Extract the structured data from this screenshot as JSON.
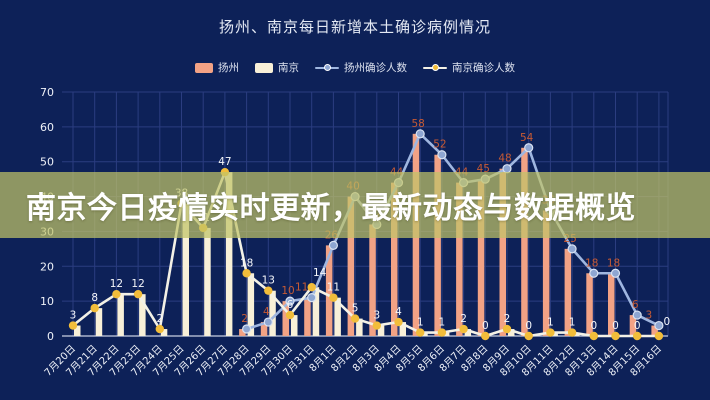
{
  "title": "扬州、南京每日新增本土确诊病例情况",
  "banner": {
    "text": "南京今日疫情实时更新，最新动态与数据概览"
  },
  "legend": [
    {
      "label": "扬州",
      "type": "bar",
      "color": "#f2a285"
    },
    {
      "label": "南京",
      "type": "bar",
      "color": "#f8f0d8"
    },
    {
      "label": "扬州确诊人数",
      "type": "line",
      "color": "#9fb6e0",
      "dot": "#8ea6d2"
    },
    {
      "label": "南京确诊人数",
      "type": "line",
      "color": "#f3f1e6",
      "dot": "#f2bd3a"
    }
  ],
  "colors": {
    "background": "#0d2158",
    "grid": "#2b3d80",
    "axis": "#c9d0e2",
    "tick_text": "#eef1f8",
    "yangzhou_bar": "#f2a285",
    "nanjing_bar": "#f8f0d8",
    "yangzhou_line": "#9fb6e0",
    "yangzhou_dot": "#8ea6d2",
    "nanjing_line": "#f3f1e6",
    "nanjing_dot": "#f2bd3a",
    "yangzhou_label": "#c65a34",
    "nanjing_label": "#f5f7fb",
    "banner_bg": "rgba(192,196,104,0.72)"
  },
  "chart_data": {
    "type": "bar",
    "subtype": "grouped bars with overlaid lines",
    "title": "扬州、南京每日新增本土确诊病例情况",
    "xlabel": "",
    "ylabel": "",
    "ylim": [
      0,
      70
    ],
    "yticks": [
      0,
      10,
      20,
      30,
      40,
      50,
      60,
      70
    ],
    "grid": true,
    "legend_position": "top",
    "categories": [
      "7月20日",
      "7月21日",
      "7月22日",
      "7月23日",
      "7月24日",
      "7月25日",
      "7月26日",
      "7月27日",
      "7月28日",
      "7月29日",
      "7月30日",
      "7月31日",
      "8月1日",
      "8月2日",
      "8月3日",
      "8月4日",
      "8月5日",
      "8月6日",
      "8月7日",
      "8月8日",
      "8月9日",
      "8月10日",
      "8月11日",
      "8月12日",
      "8月13日",
      "8月14日",
      "8月15日",
      "8月16日"
    ],
    "series": [
      {
        "name": "扬州",
        "type": "bar",
        "values": [
          null,
          null,
          null,
          null,
          null,
          null,
          null,
          null,
          2,
          4,
          10,
          11,
          26,
          40,
          32,
          44,
          58,
          52,
          44,
          45,
          48,
          54,
          36,
          25,
          18,
          18,
          6,
          3
        ]
      },
      {
        "name": "南京",
        "type": "bar",
        "values": [
          3,
          8,
          12,
          12,
          2,
          38,
          31,
          47,
          18,
          13,
          6,
          14,
          11,
          5,
          3,
          4,
          1,
          1,
          2,
          0,
          2,
          0,
          1,
          1,
          0,
          0,
          0,
          0
        ]
      },
      {
        "name": "扬州确诊人数",
        "type": "line",
        "values": [
          null,
          null,
          null,
          null,
          null,
          null,
          null,
          null,
          2,
          4,
          10,
          11,
          26,
          40,
          32,
          44,
          58,
          52,
          44,
          45,
          48,
          54,
          36,
          25,
          18,
          18,
          6,
          3
        ]
      },
      {
        "name": "南京确诊人数",
        "type": "line",
        "values": [
          3,
          8,
          12,
          12,
          2,
          38,
          31,
          47,
          18,
          13,
          6,
          14,
          11,
          5,
          3,
          4,
          1,
          1,
          2,
          0,
          2,
          0,
          1,
          1,
          0,
          0,
          0,
          0
        ]
      }
    ]
  }
}
